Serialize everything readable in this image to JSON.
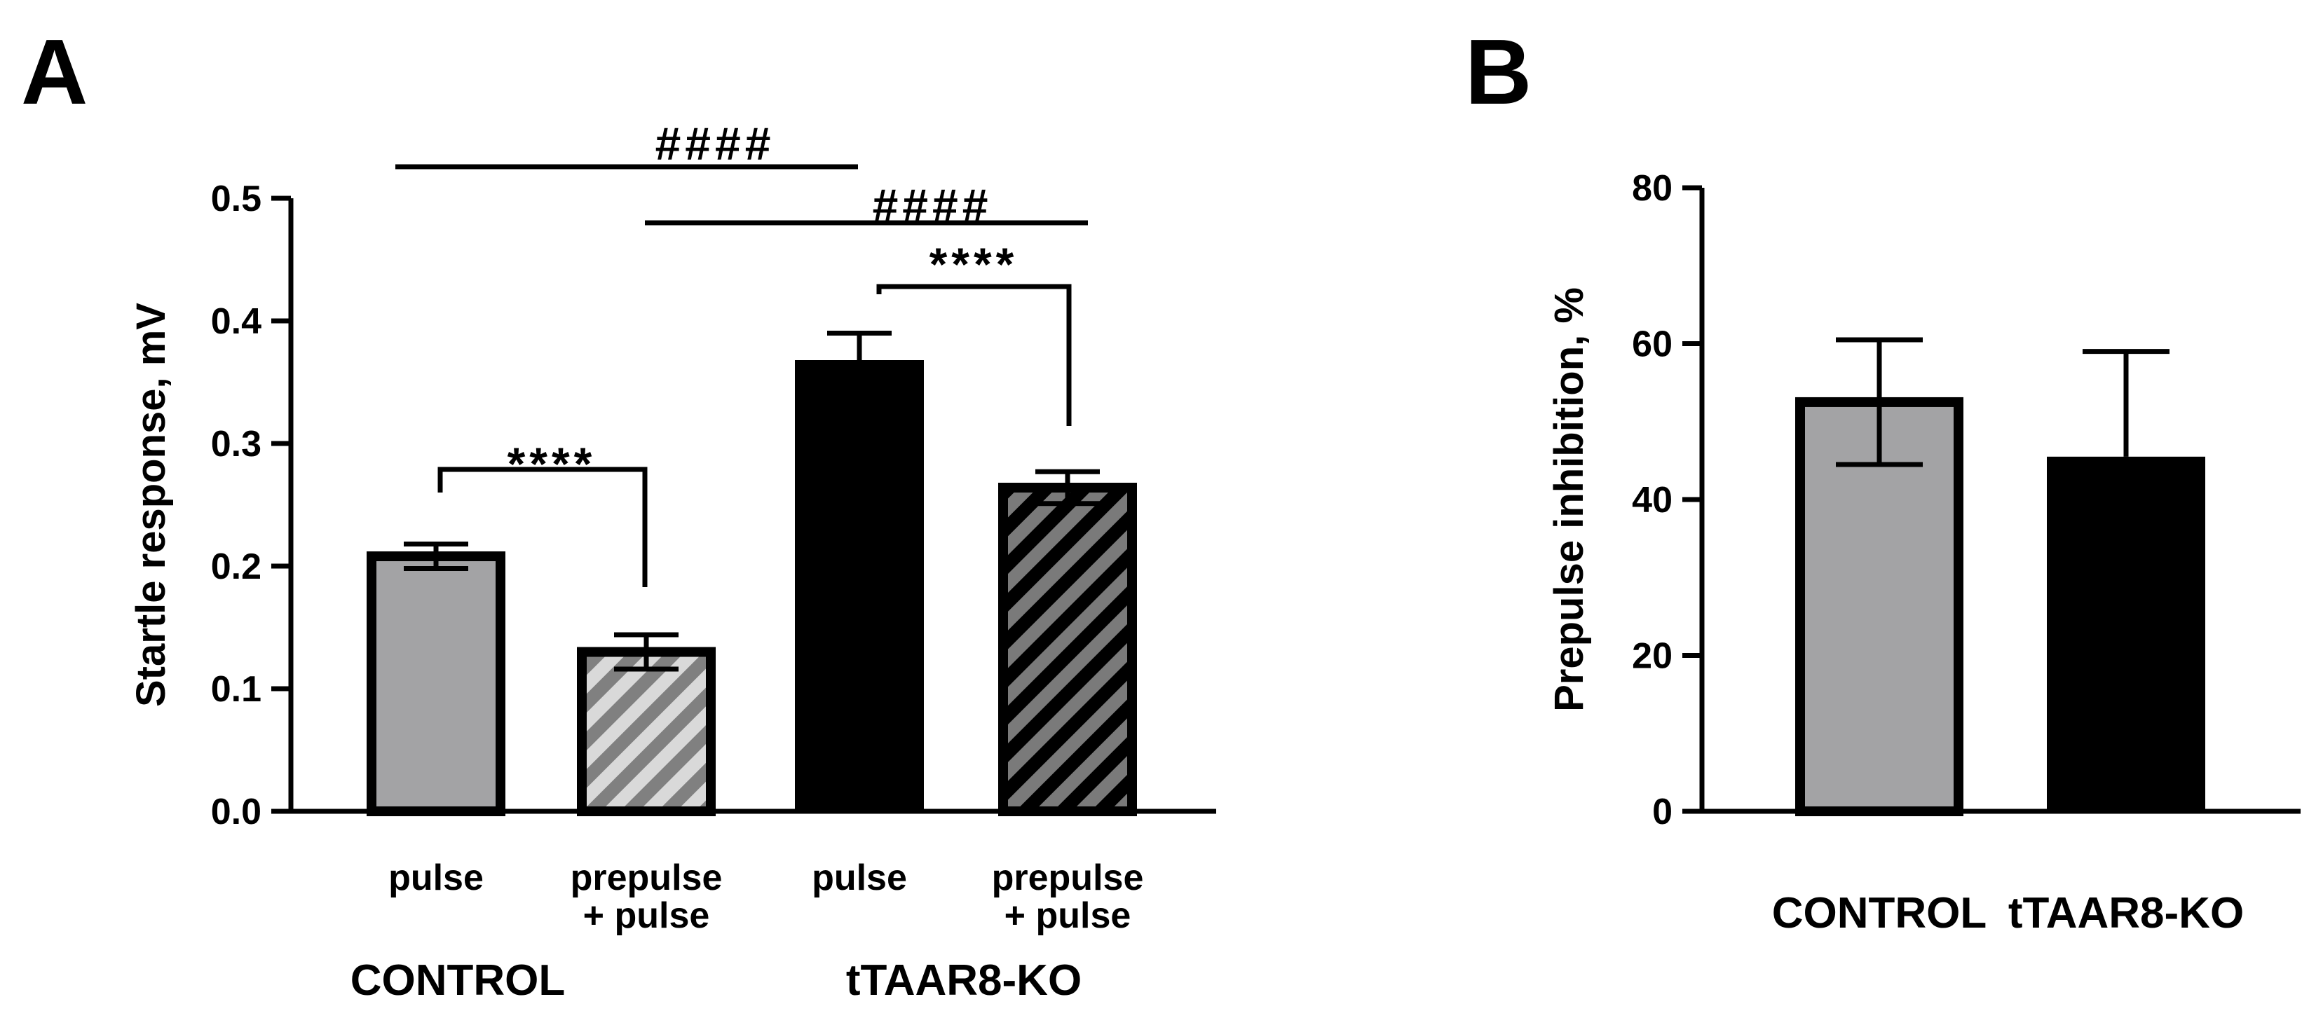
{
  "panel_letters": {
    "a": "A",
    "b": "B"
  },
  "chart_data": [
    {
      "type": "bar",
      "panel": "A",
      "ylabel": "Startle response, mV",
      "ylim": [
        0,
        0.5
      ],
      "yticks": [
        "0.0",
        "0.1",
        "0.2",
        "0.3",
        "0.4",
        "0.5"
      ],
      "categories": [
        {
          "lines": [
            "pulse"
          ],
          "group": "CONTROL"
        },
        {
          "lines": [
            "prepulse",
            "+ pulse"
          ],
          "group": "CONTROL"
        },
        {
          "lines": [
            "pulse"
          ],
          "group": "tTAAR8-KO"
        },
        {
          "lines": [
            "prepulse",
            "+ pulse"
          ],
          "group": "tTAAR8-KO"
        }
      ],
      "groups": [
        "CONTROL",
        "tTAAR8-KO"
      ],
      "values": [
        0.208,
        0.13,
        0.368,
        0.264
      ],
      "errors": [
        0.01,
        0.014,
        0.022,
        0.013
      ],
      "fills": [
        "#a3a3a5",
        "hatch-light",
        "#000000",
        "hatch-dark"
      ],
      "annotations": [
        {
          "label": "****",
          "from": 0,
          "to": 1,
          "type": "bracket"
        },
        {
          "label": "****",
          "from": 2,
          "to": 3,
          "type": "bracket"
        },
        {
          "label": "####",
          "from": 0,
          "to": 2,
          "type": "line"
        },
        {
          "label": "####",
          "from": 1,
          "to": 3,
          "type": "line"
        }
      ]
    },
    {
      "type": "bar",
      "panel": "B",
      "ylabel": "Prepulse inhibition, %",
      "ylim": [
        0,
        80
      ],
      "yticks": [
        "0",
        "20",
        "40",
        "60",
        "80"
      ],
      "categories": [
        "CONTROL",
        "tTAAR8-KO"
      ],
      "values": [
        52.5,
        45.5
      ],
      "errors": [
        8,
        13.5
      ],
      "fills": [
        "#a3a3a5",
        "#000000"
      ]
    }
  ],
  "colors": {
    "gray_bar": "#a3a3a5",
    "black_bar": "#000000",
    "hatch_light": "#d9d9d9",
    "hatch_mid": "#808080"
  }
}
